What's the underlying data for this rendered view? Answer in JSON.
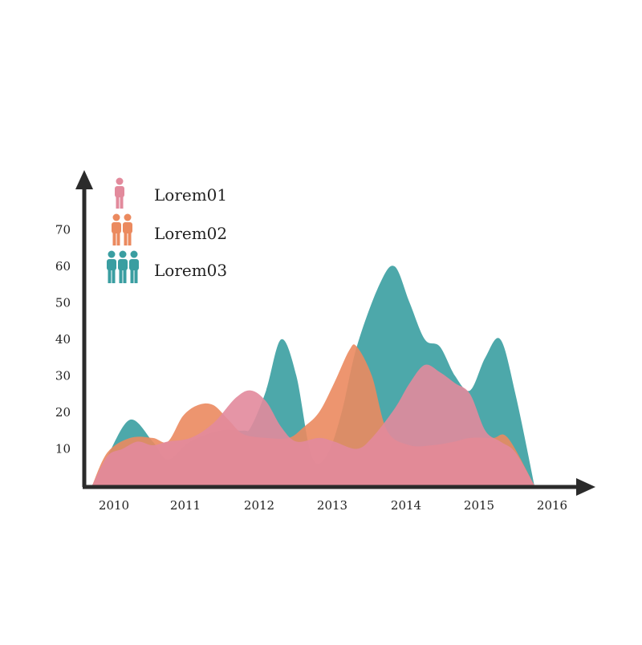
{
  "chart_data": {
    "type": "area",
    "title": "",
    "xlabel": "",
    "ylabel": "",
    "x_ticks": [
      "2010",
      "2011",
      "2012",
      "2013",
      "2014",
      "2015",
      "2016"
    ],
    "y_ticks": [
      "10",
      "20",
      "30",
      "40",
      "50",
      "60",
      "70"
    ],
    "xlim": [
      2010,
      2016
    ],
    "ylim": [
      0,
      70
    ],
    "grid": false,
    "legend_position": "top-left",
    "series": [
      {
        "name": "Lorem03",
        "color": "#3a9ea1",
        "icon": "group-of-three-people-icon",
        "x": [
          2010.0,
          2010.2,
          2010.5,
          2010.8,
          2011.0,
          2011.3,
          2011.7,
          2012.0,
          2012.1,
          2012.3,
          2012.5,
          2012.7,
          2012.9,
          2013.1,
          2013.3,
          2013.5,
          2013.8,
          2014.0,
          2014.2,
          2014.4,
          2014.6,
          2014.8,
          2015.0,
          2015.2,
          2015.4,
          2015.6,
          2015.85
        ],
        "values": [
          0,
          8,
          18,
          12,
          7,
          12,
          15,
          15,
          16,
          26,
          40,
          30,
          8,
          8,
          20,
          38,
          55,
          60,
          50,
          40,
          38,
          30,
          26,
          35,
          40,
          25,
          0
        ]
      },
      {
        "name": "Lorem02",
        "color": "#eb8a5f",
        "icon": "pair-of-people-icon",
        "x": [
          2010.0,
          2010.2,
          2010.5,
          2010.8,
          2011.0,
          2011.2,
          2011.4,
          2011.6,
          2011.8,
          2012.0,
          2012.3,
          2012.6,
          2012.8,
          2013.0,
          2013.2,
          2013.4,
          2013.5,
          2013.7,
          2013.9,
          2014.2,
          2014.5,
          2014.8,
          2015.0,
          2015.3,
          2015.5,
          2015.85
        ],
        "values": [
          0,
          9,
          13,
          13,
          12,
          19,
          22,
          22,
          18,
          14,
          13,
          13,
          16,
          20,
          28,
          37,
          38,
          30,
          15,
          11,
          11,
          12,
          13,
          13,
          13,
          0
        ]
      },
      {
        "name": "Lorem01",
        "color": "#e28a9c",
        "icon": "single-person-icon",
        "x": [
          2010.0,
          2010.2,
          2010.4,
          2010.6,
          2010.8,
          2011.0,
          2011.3,
          2011.6,
          2011.9,
          2012.1,
          2012.3,
          2012.5,
          2012.7,
          2013.0,
          2013.2,
          2013.5,
          2013.7,
          2014.0,
          2014.2,
          2014.4,
          2014.6,
          2014.8,
          2015.0,
          2015.2,
          2015.4,
          2015.6,
          2015.85
        ],
        "values": [
          0,
          8,
          10,
          12,
          11,
          12,
          13,
          17,
          24,
          26,
          23,
          16,
          12,
          13,
          12,
          10,
          13,
          21,
          28,
          33,
          31,
          28,
          25,
          15,
          12,
          9,
          0
        ]
      }
    ]
  },
  "legend": [
    {
      "label": "Lorem01",
      "color": "#e28a9c",
      "icon": "single-person-icon"
    },
    {
      "label": "Lorem02",
      "color": "#eb8a5f",
      "icon": "pair-of-people-icon"
    },
    {
      "label": "Lorem03",
      "color": "#3a9ea1",
      "icon": "group-of-three-people-icon"
    }
  ],
  "axis_color": "#2b2b2b"
}
